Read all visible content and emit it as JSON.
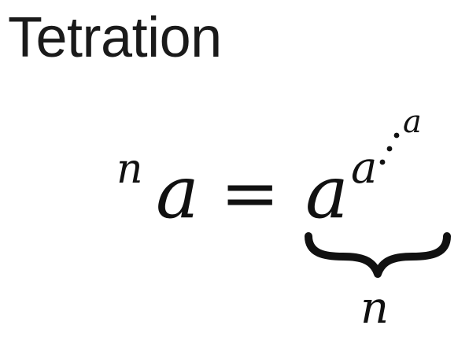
{
  "title": "Tetration",
  "formula": {
    "left_superscript": "n",
    "base": "a",
    "equals": "=",
    "rhs_base": "a",
    "rhs_exponent": "a",
    "rhs_top_exponent": "a",
    "brace_label": "n"
  }
}
